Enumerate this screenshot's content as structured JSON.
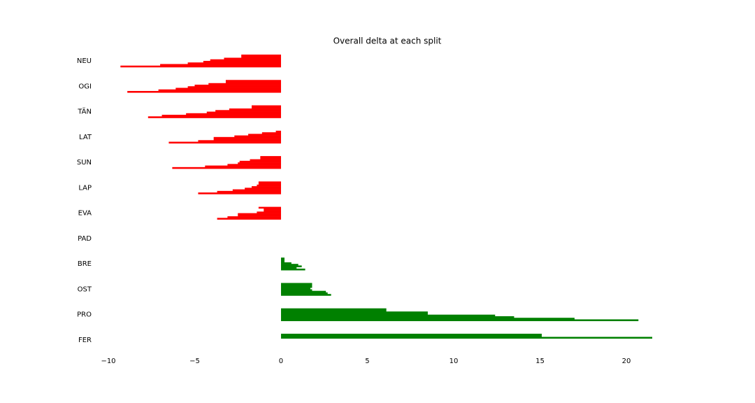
{
  "chart_data": {
    "type": "split-bar",
    "title": "Overall delta at each split",
    "categories": [
      "NEU",
      "OGI",
      "TÄN",
      "LAT",
      "SUN",
      "LAP",
      "EVA",
      "PAD",
      "BRE",
      "OST",
      "PRO",
      "FER"
    ],
    "values": [
      [
        -2.3,
        -2.3,
        -3.3,
        -4.1,
        -4.5,
        -5.4,
        -7.0,
        -9.3
      ],
      [
        -3.2,
        -3.2,
        -4.2,
        -5.0,
        -5.4,
        -6.1,
        -7.1,
        -8.9
      ],
      [
        -1.7,
        -1.7,
        -3.0,
        -3.8,
        -4.3,
        -5.5,
        -6.9,
        -7.7
      ],
      [
        -0.3,
        -1.1,
        -1.9,
        -2.7,
        -3.9,
        -3.9,
        -4.8,
        -6.5
      ],
      [
        -1.2,
        -1.2,
        -1.8,
        -2.4,
        -2.5,
        -3.1,
        -4.4,
        -6.3
      ],
      [
        -1.3,
        -1.3,
        -1.4,
        -1.7,
        -2.1,
        -2.8,
        -3.7,
        -4.8
      ],
      [
        -1.3,
        -1.0,
        -1.0,
        -1.4,
        -2.5,
        -2.5,
        -3.1,
        -3.7
      ],
      [
        0,
        0,
        0,
        0,
        0,
        0,
        0,
        0
      ],
      [
        0.2,
        0.2,
        0.2,
        0.6,
        1.0,
        1.2,
        0.9,
        1.4
      ],
      [
        1.8,
        1.8,
        1.8,
        1.7,
        1.8,
        2.6,
        2.7,
        2.9
      ],
      [
        6.1,
        6.1,
        8.5,
        8.5,
        12.4,
        13.5,
        17.0,
        20.7
      ],
      [
        15.1,
        15.1,
        21.5,
        null,
        null,
        null,
        null,
        null
      ]
    ],
    "negative_color": "#ff0000",
    "positive_color": "#008000",
    "xlim": [
      -10,
      21.5
    ],
    "xticks": [
      {
        "value": -10,
        "label": "−10"
      },
      {
        "value": -5,
        "label": "−5"
      },
      0,
      5,
      10,
      15,
      20
    ],
    "grid": false
  }
}
